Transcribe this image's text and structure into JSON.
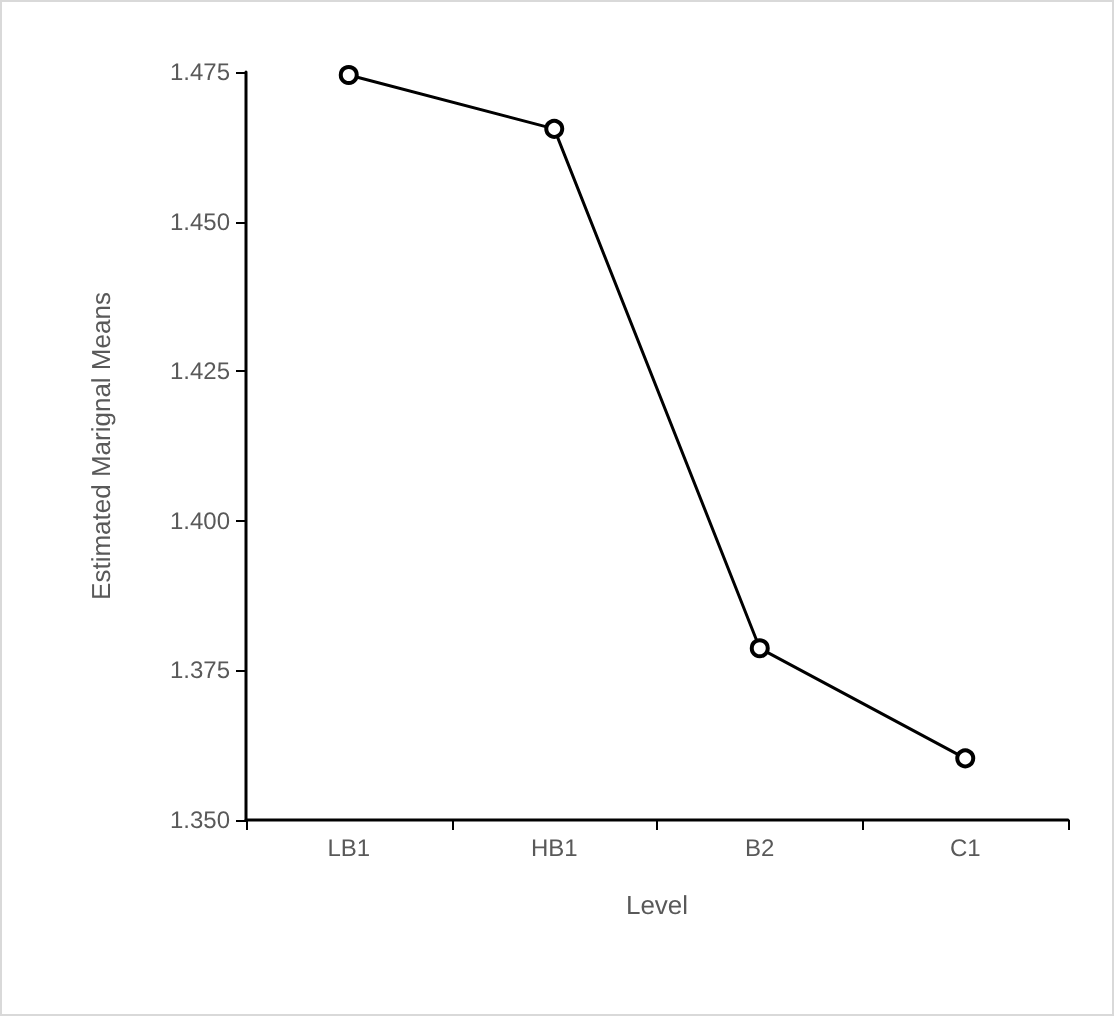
{
  "chart_data": {
    "type": "line",
    "xlabel": "Level",
    "ylabel": "Estimated Marignal Means",
    "categories": [
      "LB1",
      "HB1",
      "B2",
      "C1"
    ],
    "series": [
      {
        "color": "#000000",
        "values": [
          1.4745,
          1.4655,
          1.3787,
          1.3603
        ]
      }
    ],
    "ylim": [
      1.35,
      1.475
    ],
    "yticks": [
      {
        "value": 1.35,
        "label": "1.350"
      },
      {
        "value": 1.375,
        "label": "1.375"
      },
      {
        "value": 1.4,
        "label": "1.400"
      },
      {
        "value": 1.425,
        "label": "1.425"
      },
      {
        "value": 1.45,
        "label": "1.450"
      },
      {
        "value": 1.475,
        "label": "1.475"
      }
    ],
    "marker": "circle",
    "line_style": "solid"
  }
}
